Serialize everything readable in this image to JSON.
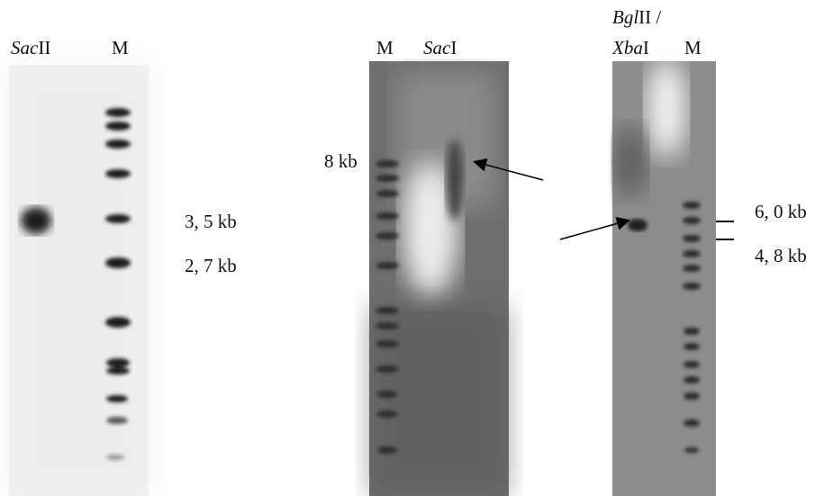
{
  "panels": [
    {
      "lanes": [
        {
          "italic": "Sac",
          "roman": "II"
        },
        {
          "roman": "M"
        }
      ],
      "sizes": [
        "3, 5 kb",
        "2, 7 kb"
      ]
    },
    {
      "lanes": [
        {
          "roman": "M"
        },
        {
          "italic": "Sac",
          "roman": "I"
        }
      ],
      "sizes": [
        "8 kb"
      ]
    },
    {
      "lanes": [
        {
          "italic": "Bgl",
          "roman": "II /"
        },
        {
          "italic": "Xba",
          "roman": "I"
        },
        {
          "roman": "M"
        }
      ],
      "sizes": [
        "6, 0 kb",
        "4, 8 kb"
      ]
    }
  ]
}
